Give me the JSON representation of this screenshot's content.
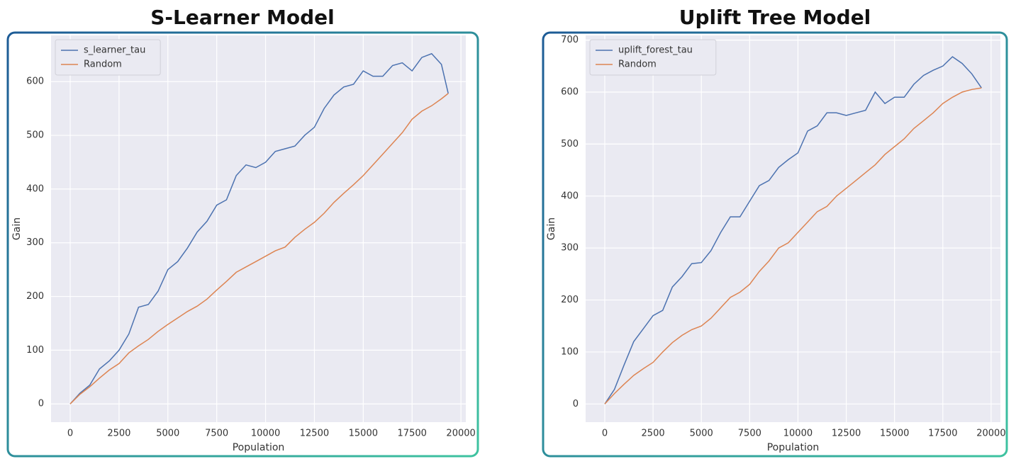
{
  "chart_data": [
    {
      "type": "line",
      "title": "S-Learner Model",
      "x_label": "Population",
      "y_label": "Gain",
      "x": [
        0,
        500,
        1000,
        1500,
        2000,
        2500,
        3000,
        3500,
        4000,
        4500,
        5000,
        5500,
        6000,
        6500,
        7000,
        7500,
        8000,
        8500,
        9000,
        9500,
        10000,
        10500,
        11000,
        11500,
        12000,
        12500,
        13000,
        13500,
        14000,
        14500,
        15000,
        15500,
        16000,
        16500,
        17000,
        17500,
        18000,
        18500,
        19000,
        19350
      ],
      "series": [
        {
          "name": "s_learner_tau",
          "color": "#4c72b0",
          "values": [
            0,
            20,
            35,
            65,
            80,
            100,
            130,
            180,
            185,
            210,
            250,
            265,
            290,
            320,
            340,
            370,
            380,
            425,
            445,
            440,
            450,
            470,
            475,
            480,
            500,
            515,
            550,
            575,
            590,
            595,
            620,
            610,
            610,
            630,
            635,
            620,
            645,
            652,
            632,
            578
          ]
        },
        {
          "name": "Random",
          "color": "#dd8452",
          "values": [
            0,
            18,
            32,
            48,
            63,
            75,
            95,
            108,
            120,
            135,
            148,
            160,
            172,
            182,
            195,
            212,
            228,
            245,
            255,
            265,
            275,
            285,
            292,
            310,
            325,
            338,
            355,
            375,
            392,
            408,
            425,
            445,
            465,
            485,
            505,
            530,
            545,
            555,
            568,
            578
          ]
        }
      ],
      "xlim": [
        -980,
        20250
      ],
      "ylim": [
        -34,
        686
      ],
      "xticks": [
        0,
        2500,
        5000,
        7500,
        10000,
        12500,
        15000,
        17500,
        20000
      ],
      "yticks": [
        0,
        100,
        200,
        300,
        400,
        500,
        600
      ],
      "grid": true,
      "legend": "upper-left"
    },
    {
      "type": "line",
      "title": "Uplift Tree Model",
      "x_label": "Population",
      "y_label": "Gain",
      "x": [
        0,
        500,
        1000,
        1500,
        2000,
        2500,
        3000,
        3500,
        4000,
        4500,
        5000,
        5500,
        6000,
        6500,
        7000,
        7500,
        8000,
        8500,
        9000,
        9500,
        10000,
        10500,
        11000,
        11500,
        12000,
        12500,
        13000,
        13500,
        14000,
        14500,
        15000,
        15500,
        16000,
        16500,
        17000,
        17500,
        18000,
        18500,
        19000,
        19500
      ],
      "series": [
        {
          "name": "uplift_forest_tau",
          "color": "#4c72b0",
          "values": [
            0,
            28,
            75,
            120,
            145,
            170,
            180,
            225,
            245,
            270,
            272,
            295,
            330,
            360,
            360,
            390,
            420,
            430,
            455,
            470,
            483,
            525,
            535,
            560,
            560,
            555,
            560,
            565,
            600,
            578,
            590,
            590,
            615,
            632,
            642,
            650,
            668,
            655,
            635,
            608
          ]
        },
        {
          "name": "Random",
          "color": "#dd8452",
          "values": [
            0,
            20,
            38,
            55,
            68,
            80,
            100,
            118,
            132,
            143,
            150,
            165,
            185,
            205,
            215,
            230,
            255,
            275,
            300,
            310,
            330,
            350,
            370,
            380,
            400,
            415,
            430,
            445,
            460,
            480,
            495,
            510,
            530,
            545,
            560,
            578,
            590,
            600,
            605,
            608
          ]
        }
      ],
      "xlim": [
        -990,
        20480
      ],
      "ylim": [
        -35,
        709
      ],
      "xticks": [
        0,
        2500,
        5000,
        7500,
        10000,
        12500,
        15000,
        17500,
        20000
      ],
      "yticks": [
        0,
        100,
        200,
        300,
        400,
        500,
        600,
        700
      ],
      "grid": true,
      "legend": "upper-left"
    }
  ]
}
